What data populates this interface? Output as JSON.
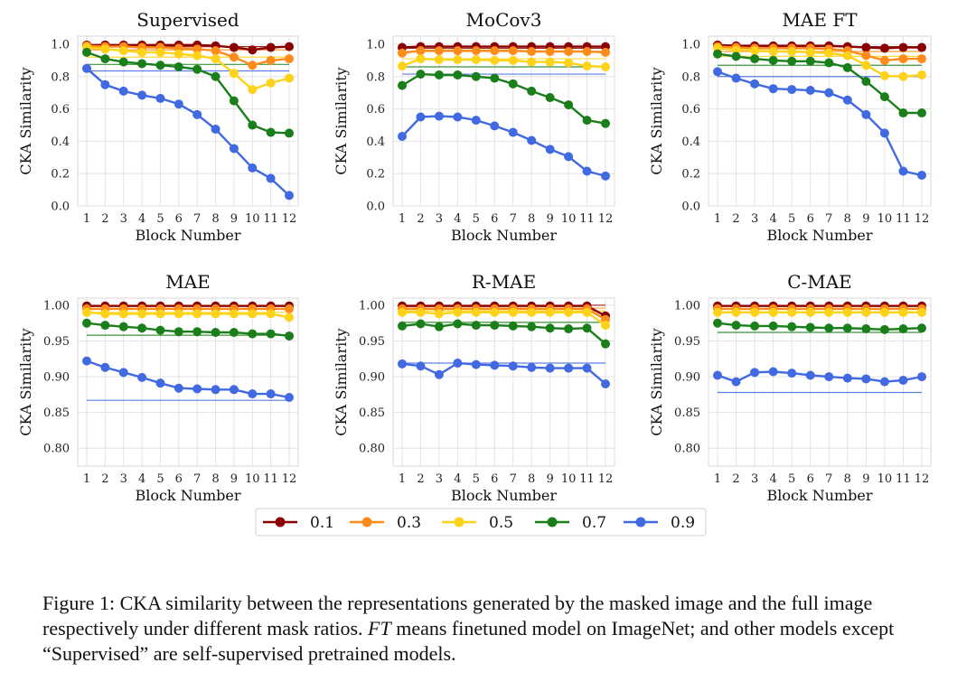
{
  "chart_data": [
    {
      "type": "line",
      "title": "Supervised",
      "xlabel": "Block Number",
      "ylabel": "CKA Similarity",
      "categories": [
        1,
        2,
        3,
        4,
        5,
        6,
        7,
        8,
        9,
        10,
        11,
        12
      ],
      "ylim": [
        0.0,
        1.05
      ],
      "yticks": [
        0.0,
        0.2,
        0.4,
        0.6,
        0.8,
        1.0
      ],
      "ytick_labels": [
        "0.0",
        "0.2",
        "0.4",
        "0.6",
        "0.8",
        "1.0"
      ],
      "series": [
        {
          "name": "0.1",
          "values": [
            0.995,
            0.995,
            0.995,
            0.995,
            0.995,
            0.995,
            0.995,
            0.99,
            0.98,
            0.965,
            0.98,
            0.985
          ],
          "ref": 0.985
        },
        {
          "name": "0.3",
          "values": [
            0.99,
            0.985,
            0.985,
            0.98,
            0.98,
            0.975,
            0.97,
            0.96,
            0.92,
            0.87,
            0.9,
            0.91
          ],
          "ref": 0.965
        },
        {
          "name": "0.5",
          "values": [
            0.98,
            0.97,
            0.96,
            0.95,
            0.95,
            0.94,
            0.93,
            0.91,
            0.82,
            0.72,
            0.76,
            0.79
          ],
          "ref": 0.92
        },
        {
          "name": "0.7",
          "values": [
            0.95,
            0.91,
            0.89,
            0.88,
            0.87,
            0.86,
            0.845,
            0.8,
            0.65,
            0.5,
            0.455,
            0.45
          ],
          "ref": 0.875
        },
        {
          "name": "0.9",
          "values": [
            0.85,
            0.75,
            0.71,
            0.685,
            0.665,
            0.63,
            0.565,
            0.475,
            0.355,
            0.235,
            0.17,
            0.065
          ],
          "ref": 0.835
        }
      ]
    },
    {
      "type": "line",
      "title": "MoCov3",
      "xlabel": "Block Number",
      "ylabel": "CKA Similarity",
      "categories": [
        1,
        2,
        3,
        4,
        5,
        6,
        7,
        8,
        9,
        10,
        11,
        12
      ],
      "ylim": [
        0.0,
        1.05
      ],
      "yticks": [
        0.0,
        0.2,
        0.4,
        0.6,
        0.8,
        1.0
      ],
      "ytick_labels": [
        "0.0",
        "0.2",
        "0.4",
        "0.6",
        "0.8",
        "1.0"
      ],
      "series": [
        {
          "name": "0.1",
          "values": [
            0.98,
            0.985,
            0.985,
            0.985,
            0.985,
            0.985,
            0.985,
            0.985,
            0.985,
            0.985,
            0.985,
            0.985
          ],
          "ref": 0.975
        },
        {
          "name": "0.3",
          "values": [
            0.945,
            0.96,
            0.96,
            0.96,
            0.96,
            0.96,
            0.96,
            0.955,
            0.955,
            0.955,
            0.955,
            0.95
          ],
          "ref": 0.955
        },
        {
          "name": "0.5",
          "values": [
            0.865,
            0.91,
            0.905,
            0.905,
            0.905,
            0.9,
            0.9,
            0.89,
            0.89,
            0.885,
            0.865,
            0.86
          ],
          "ref": 0.91
        },
        {
          "name": "0.7",
          "values": [
            0.745,
            0.815,
            0.81,
            0.81,
            0.8,
            0.79,
            0.755,
            0.71,
            0.67,
            0.625,
            0.53,
            0.51
          ],
          "ref": 0.86
        },
        {
          "name": "0.9",
          "values": [
            0.43,
            0.55,
            0.555,
            0.55,
            0.53,
            0.495,
            0.455,
            0.405,
            0.35,
            0.305,
            0.215,
            0.185
          ],
          "ref": 0.815
        }
      ]
    },
    {
      "type": "line",
      "title": "MAE FT",
      "xlabel": "Block Number",
      "ylabel": "CKA Similarity",
      "categories": [
        1,
        2,
        3,
        4,
        5,
        6,
        7,
        8,
        9,
        10,
        11,
        12
      ],
      "ylim": [
        0.0,
        1.05
      ],
      "yticks": [
        0.0,
        0.2,
        0.4,
        0.6,
        0.8,
        1.0
      ],
      "ytick_labels": [
        "0.0",
        "0.2",
        "0.4",
        "0.6",
        "0.8",
        "1.0"
      ],
      "series": [
        {
          "name": "0.1",
          "values": [
            0.995,
            0.99,
            0.99,
            0.99,
            0.99,
            0.99,
            0.99,
            0.985,
            0.98,
            0.975,
            0.98,
            0.98
          ],
          "ref": 0.985
        },
        {
          "name": "0.3",
          "values": [
            0.985,
            0.98,
            0.975,
            0.975,
            0.975,
            0.975,
            0.97,
            0.96,
            0.93,
            0.9,
            0.91,
            0.91
          ],
          "ref": 0.955
        },
        {
          "name": "0.5",
          "values": [
            0.975,
            0.965,
            0.96,
            0.955,
            0.955,
            0.95,
            0.945,
            0.93,
            0.87,
            0.805,
            0.8,
            0.81
          ],
          "ref": 0.925
        },
        {
          "name": "0.7",
          "values": [
            0.94,
            0.925,
            0.91,
            0.9,
            0.895,
            0.895,
            0.885,
            0.855,
            0.77,
            0.675,
            0.575,
            0.575
          ],
          "ref": 0.87
        },
        {
          "name": "0.9",
          "values": [
            0.83,
            0.79,
            0.755,
            0.725,
            0.72,
            0.715,
            0.7,
            0.655,
            0.565,
            0.45,
            0.215,
            0.19
          ],
          "ref": 0.8
        }
      ]
    },
    {
      "type": "line",
      "title": "MAE",
      "xlabel": "Block Number",
      "ylabel": "CKA Similarity",
      "categories": [
        1,
        2,
        3,
        4,
        5,
        6,
        7,
        8,
        9,
        10,
        11,
        12
      ],
      "ylim": [
        0.775,
        1.01
      ],
      "yticks": [
        0.8,
        0.85,
        0.9,
        0.95,
        1.0
      ],
      "ytick_labels": [
        "0.80",
        "0.85",
        "0.90",
        "0.95",
        "1.00"
      ],
      "series": [
        {
          "name": "0.1",
          "values": [
            0.999,
            0.999,
            0.999,
            0.999,
            0.999,
            0.999,
            0.999,
            0.999,
            0.999,
            0.999,
            0.999,
            0.999
          ],
          "ref": 0.999
        },
        {
          "name": "0.3",
          "values": [
            0.995,
            0.995,
            0.995,
            0.995,
            0.995,
            0.995,
            0.995,
            0.995,
            0.995,
            0.995,
            0.995,
            0.995
          ],
          "ref": 0.995
        },
        {
          "name": "0.5",
          "values": [
            0.99,
            0.988,
            0.988,
            0.988,
            0.988,
            0.988,
            0.988,
            0.988,
            0.988,
            0.988,
            0.988,
            0.983
          ],
          "ref": 0.99
        },
        {
          "name": "0.7",
          "values": [
            0.975,
            0.972,
            0.97,
            0.968,
            0.965,
            0.963,
            0.963,
            0.962,
            0.962,
            0.96,
            0.96,
            0.957
          ],
          "ref": 0.958
        },
        {
          "name": "0.9",
          "values": [
            0.922,
            0.913,
            0.906,
            0.899,
            0.891,
            0.884,
            0.883,
            0.882,
            0.882,
            0.876,
            0.876,
            0.871
          ],
          "ref": 0.867
        }
      ]
    },
    {
      "type": "line",
      "title": "R-MAE",
      "xlabel": "Block Number",
      "ylabel": "CKA Similarity",
      "categories": [
        1,
        2,
        3,
        4,
        5,
        6,
        7,
        8,
        9,
        10,
        11,
        12
      ],
      "ylim": [
        0.775,
        1.01
      ],
      "yticks": [
        0.8,
        0.85,
        0.9,
        0.95,
        1.0
      ],
      "ytick_labels": [
        "0.80",
        "0.85",
        "0.90",
        "0.95",
        "1.00"
      ],
      "series": [
        {
          "name": "0.1",
          "values": [
            0.999,
            0.999,
            0.999,
            0.999,
            0.999,
            0.999,
            0.999,
            0.999,
            0.999,
            0.999,
            0.999,
            0.985
          ],
          "ref": 1.0
        },
        {
          "name": "0.3",
          "values": [
            0.995,
            0.995,
            0.995,
            0.995,
            0.995,
            0.995,
            0.995,
            0.995,
            0.995,
            0.995,
            0.995,
            0.98
          ],
          "ref": 0.996
        },
        {
          "name": "0.5",
          "values": [
            0.99,
            0.99,
            0.988,
            0.99,
            0.99,
            0.99,
            0.99,
            0.99,
            0.99,
            0.99,
            0.99,
            0.972
          ],
          "ref": 0.992
        },
        {
          "name": "0.7",
          "values": [
            0.971,
            0.974,
            0.97,
            0.974,
            0.972,
            0.972,
            0.971,
            0.97,
            0.968,
            0.967,
            0.968,
            0.946
          ],
          "ref": 0.976
        },
        {
          "name": "0.9",
          "values": [
            0.918,
            0.915,
            0.903,
            0.919,
            0.917,
            0.916,
            0.915,
            0.913,
            0.912,
            0.912,
            0.912,
            0.89
          ],
          "ref": 0.919
        }
      ]
    },
    {
      "type": "line",
      "title": "C-MAE",
      "xlabel": "Block Number",
      "ylabel": "CKA Similarity",
      "categories": [
        1,
        2,
        3,
        4,
        5,
        6,
        7,
        8,
        9,
        10,
        11,
        12
      ],
      "ylim": [
        0.775,
        1.01
      ],
      "yticks": [
        0.8,
        0.85,
        0.9,
        0.95,
        1.0
      ],
      "ytick_labels": [
        "0.80",
        "0.85",
        "0.90",
        "0.95",
        "1.00"
      ],
      "series": [
        {
          "name": "0.1",
          "values": [
            0.999,
            0.999,
            0.999,
            0.999,
            0.999,
            0.999,
            0.999,
            0.999,
            0.999,
            0.999,
            0.999,
            0.999
          ],
          "ref": 0.999
        },
        {
          "name": "0.3",
          "values": [
            0.995,
            0.995,
            0.995,
            0.995,
            0.995,
            0.995,
            0.995,
            0.995,
            0.995,
            0.995,
            0.995,
            0.995
          ],
          "ref": 0.995
        },
        {
          "name": "0.5",
          "values": [
            0.99,
            0.99,
            0.99,
            0.99,
            0.99,
            0.99,
            0.99,
            0.99,
            0.99,
            0.99,
            0.99,
            0.99
          ],
          "ref": 0.99
        },
        {
          "name": "0.7",
          "values": [
            0.975,
            0.972,
            0.971,
            0.971,
            0.97,
            0.969,
            0.968,
            0.968,
            0.967,
            0.966,
            0.967,
            0.968
          ],
          "ref": 0.962
        },
        {
          "name": "0.9",
          "values": [
            0.902,
            0.893,
            0.906,
            0.907,
            0.905,
            0.902,
            0.9,
            0.898,
            0.897,
            0.893,
            0.895,
            0.9
          ],
          "ref": 0.878
        }
      ]
    }
  ],
  "colors": {
    "0.1": "#8b0000",
    "0.3": "#ff8c1a",
    "0.5": "#ffd21a",
    "0.7": "#1a7f1a",
    "0.9": "#4169e1"
  },
  "legend": {
    "entries": [
      "0.1",
      "0.3",
      "0.5",
      "0.7",
      "0.9"
    ]
  },
  "caption": {
    "label": "Figure 1:",
    "text_before": " CKA similarity between the representations generated by the masked image and the full image respectively under different mask ratios. ",
    "em": "FT",
    "text_after": " means finetuned model on ImageNet; and other models except “Supervised” are self-supervised pretrained models."
  }
}
